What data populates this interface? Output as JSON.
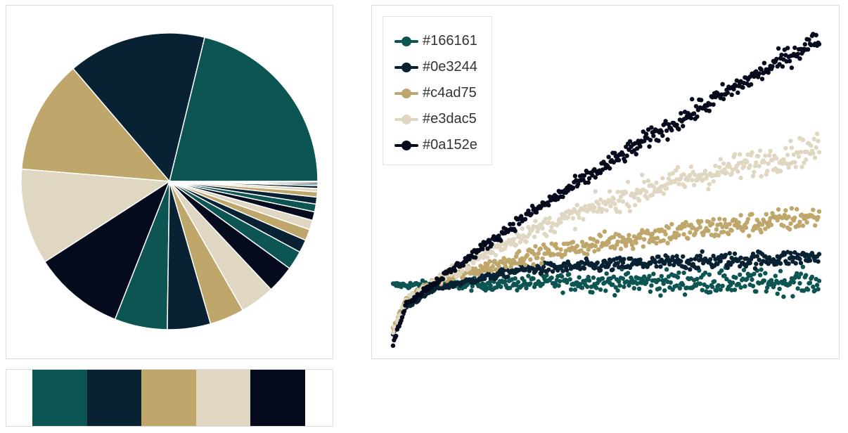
{
  "palette": [
    "#0c5552",
    "#082234",
    "#bfa76b",
    "#e0d7c2",
    "#050a1d"
  ],
  "chart_data": [
    {
      "type": "pie",
      "values": [
        22.5,
        16.0,
        13.2,
        11.1,
        10.5,
        6.1,
        5.0,
        4.0,
        4.0,
        3.2,
        2.2,
        1.5,
        1.3,
        1.1,
        1.0,
        0.9,
        0.8,
        0.6,
        0.4,
        0.3,
        0.2,
        0.2,
        0.1
      ],
      "colors": [
        "#0c5552",
        "#082234",
        "#bfa76b",
        "#e0d7c2",
        "#050a1d",
        "#0c5552",
        "#082234",
        "#bfa76b",
        "#e0d7c2",
        "#050a1d",
        "#0c5552",
        "#082234",
        "#bfa76b",
        "#e0d7c2",
        "#050a1d",
        "#0c5552",
        "#082234",
        "#bfa76b",
        "#e0d7c2",
        "#050a1d",
        "#0c5552",
        "#082234",
        "#bfa76b"
      ]
    },
    {
      "type": "scatter",
      "grid": false,
      "axes_visible": false,
      "legend_position": "top-left",
      "x_range": [
        0,
        1
      ],
      "y_range": [
        0,
        1.04
      ],
      "series": [
        {
          "name": "#166161",
          "color": "#0c5552",
          "trend": [
            [
              0,
              0.19
            ],
            [
              0.15,
              0.19
            ],
            [
              0.4,
              0.2
            ],
            [
              0.7,
              0.2
            ],
            [
              1.0,
              0.2
            ]
          ],
          "spread": 0.06
        },
        {
          "name": "#0e3244",
          "color": "#082234",
          "trend": [
            [
              0,
              0.03
            ],
            [
              0.03,
              0.12
            ],
            [
              0.1,
              0.18
            ],
            [
              0.3,
              0.24
            ],
            [
              0.6,
              0.26
            ],
            [
              1.0,
              0.28
            ]
          ],
          "spread": 0.04
        },
        {
          "name": "#c4ad75",
          "color": "#bfa76b",
          "trend": [
            [
              0,
              0.05
            ],
            [
              0.03,
              0.14
            ],
            [
              0.1,
              0.2
            ],
            [
              0.3,
              0.28
            ],
            [
              0.6,
              0.35
            ],
            [
              1.0,
              0.41
            ]
          ],
          "spread": 0.06
        },
        {
          "name": "#e3dac5",
          "color": "#e0d7c2",
          "trend": [
            [
              0,
              0.04
            ],
            [
              0.03,
              0.14
            ],
            [
              0.1,
              0.2
            ],
            [
              0.3,
              0.35
            ],
            [
              0.6,
              0.5
            ],
            [
              1.0,
              0.63
            ]
          ],
          "spread": 0.07
        },
        {
          "name": "#0a152e",
          "color": "#050a1d",
          "trend": [
            [
              0,
              0.0
            ],
            [
              0.03,
              0.13
            ],
            [
              0.1,
              0.2
            ],
            [
              0.3,
              0.4
            ],
            [
              0.6,
              0.66
            ],
            [
              1.0,
              0.98
            ]
          ],
          "spread": 0.05
        }
      ]
    }
  ]
}
